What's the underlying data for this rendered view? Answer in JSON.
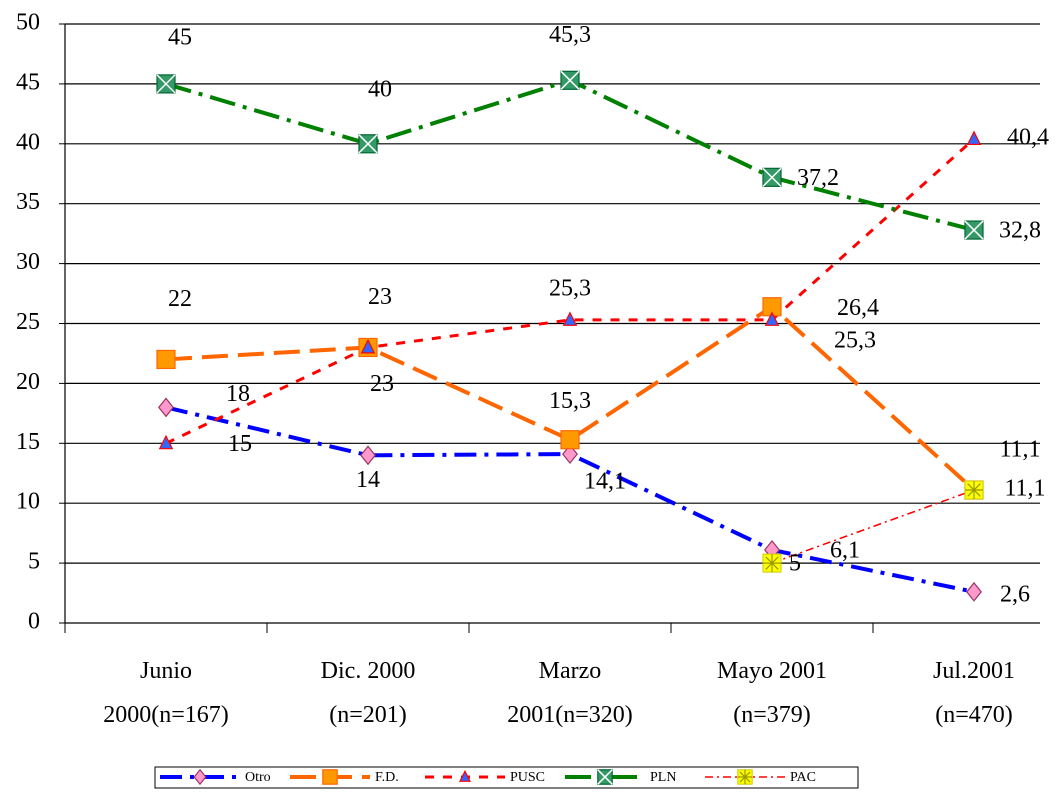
{
  "chart_data": {
    "type": "line",
    "categories": [
      "Junio\n2000(n=167)",
      "Dic. 2000\n(n=201)",
      "Marzo\n2001(n=320)",
      "Mayo 2001\n(n=379)",
      "Jul.2001\n(n=470)"
    ],
    "series": [
      {
        "name": "Otro",
        "color": "#0000ff",
        "values": [
          18,
          14,
          14.1,
          6.1,
          2.6
        ],
        "value_labels": [
          "18",
          "14",
          "14,1",
          "6,1",
          "2,6"
        ]
      },
      {
        "name": "F.D.",
        "color": "#ff6600",
        "values": [
          22,
          23,
          15.3,
          26.4,
          11.1
        ],
        "value_labels": [
          "22",
          "23",
          "15,3",
          "26,4",
          "11,1"
        ]
      },
      {
        "name": "PUSC",
        "color": "#ff0000",
        "values": [
          15,
          23,
          25.3,
          25.3,
          40.4
        ],
        "value_labels": [
          "15",
          "23",
          "25,3",
          "25,3",
          "40,4"
        ]
      },
      {
        "name": "PLN",
        "color": "#008000",
        "values": [
          45,
          40,
          45.3,
          37.2,
          32.8
        ],
        "value_labels": [
          "45",
          "40",
          "45,3",
          "37,2",
          "32,8"
        ]
      },
      {
        "name": "PAC",
        "color": "#ff0000",
        "values": [
          null,
          null,
          null,
          5,
          11.1
        ],
        "value_labels": [
          null,
          null,
          null,
          "5",
          "11,1"
        ]
      }
    ],
    "ylim": [
      0,
      50
    ],
    "yticks": [
      0,
      5,
      10,
      15,
      20,
      25,
      30,
      35,
      40,
      45,
      50
    ],
    "grid": true,
    "legend": "bottom"
  }
}
